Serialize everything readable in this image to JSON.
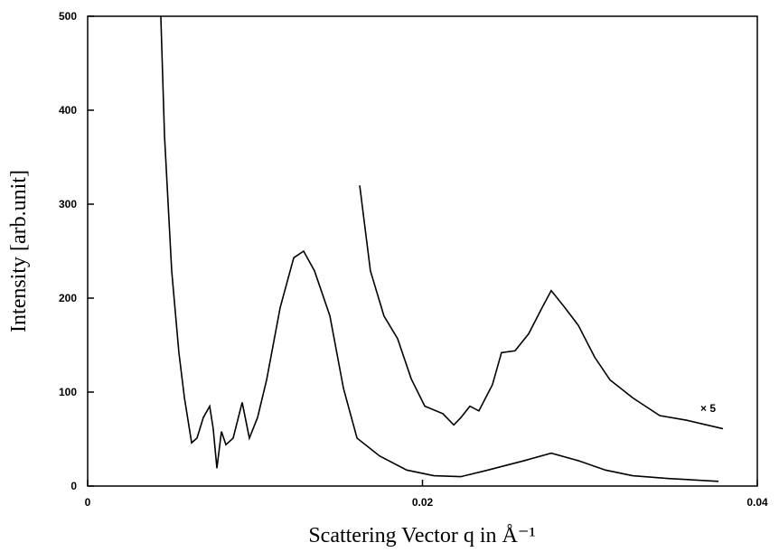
{
  "chart_data": {
    "type": "line",
    "xlabel": "Scattering Vector q  in Å⁻¹",
    "ylabel": "Intensity [arb.unit]",
    "annotations": [
      "× 5"
    ],
    "xlim": [
      0,
      0.04
    ],
    "xticks": [
      0,
      0.02,
      0.04
    ],
    "ylim": [
      0,
      500
    ],
    "yticks": [
      0,
      100,
      200,
      300,
      400,
      500
    ],
    "series": [
      {
        "color": "#000000",
        "x": [
          0.00437,
          0.00459,
          0.00502,
          0.00545,
          0.00578,
          0.00621,
          0.00653,
          0.00691,
          0.00729,
          0.0075,
          0.00772,
          0.00799,
          0.00826,
          0.00869,
          0.00923,
          0.00966,
          0.01015,
          0.01069,
          0.0115,
          0.01231,
          0.0129,
          0.01355,
          0.01447,
          0.01528,
          0.01609,
          0.01744,
          0.01906,
          0.02068,
          0.02229,
          0.02391,
          0.02607,
          0.02769,
          0.02931,
          0.03093,
          0.03255,
          0.03471,
          0.03768
        ],
        "values": [
          500,
          373,
          229,
          142,
          94,
          46,
          51,
          73,
          85,
          61,
          19,
          58,
          44,
          51,
          89,
          51,
          73,
          113,
          190,
          243,
          250,
          229,
          181,
          104,
          51,
          32,
          17,
          11,
          10,
          17,
          27,
          35,
          27,
          17,
          11,
          8,
          5
        ]
      },
      {
        "color": "#000000",
        "x": [
          0.01625,
          0.01689,
          0.0177,
          0.01851,
          0.01933,
          0.02014,
          0.02122,
          0.02187,
          0.0223,
          0.02283,
          0.02337,
          0.02418,
          0.02472,
          0.02553,
          0.02634,
          0.02715,
          0.02769,
          0.0285,
          0.02931,
          0.03029,
          0.0312,
          0.03255,
          0.03417,
          0.03579,
          0.03795
        ],
        "values": [
          320,
          229,
          181,
          157,
          114,
          85,
          77,
          65,
          73,
          85,
          80,
          108,
          142,
          144,
          162,
          190,
          208,
          190,
          171,
          137,
          113,
          94,
          75,
          70,
          61
        ]
      }
    ]
  }
}
